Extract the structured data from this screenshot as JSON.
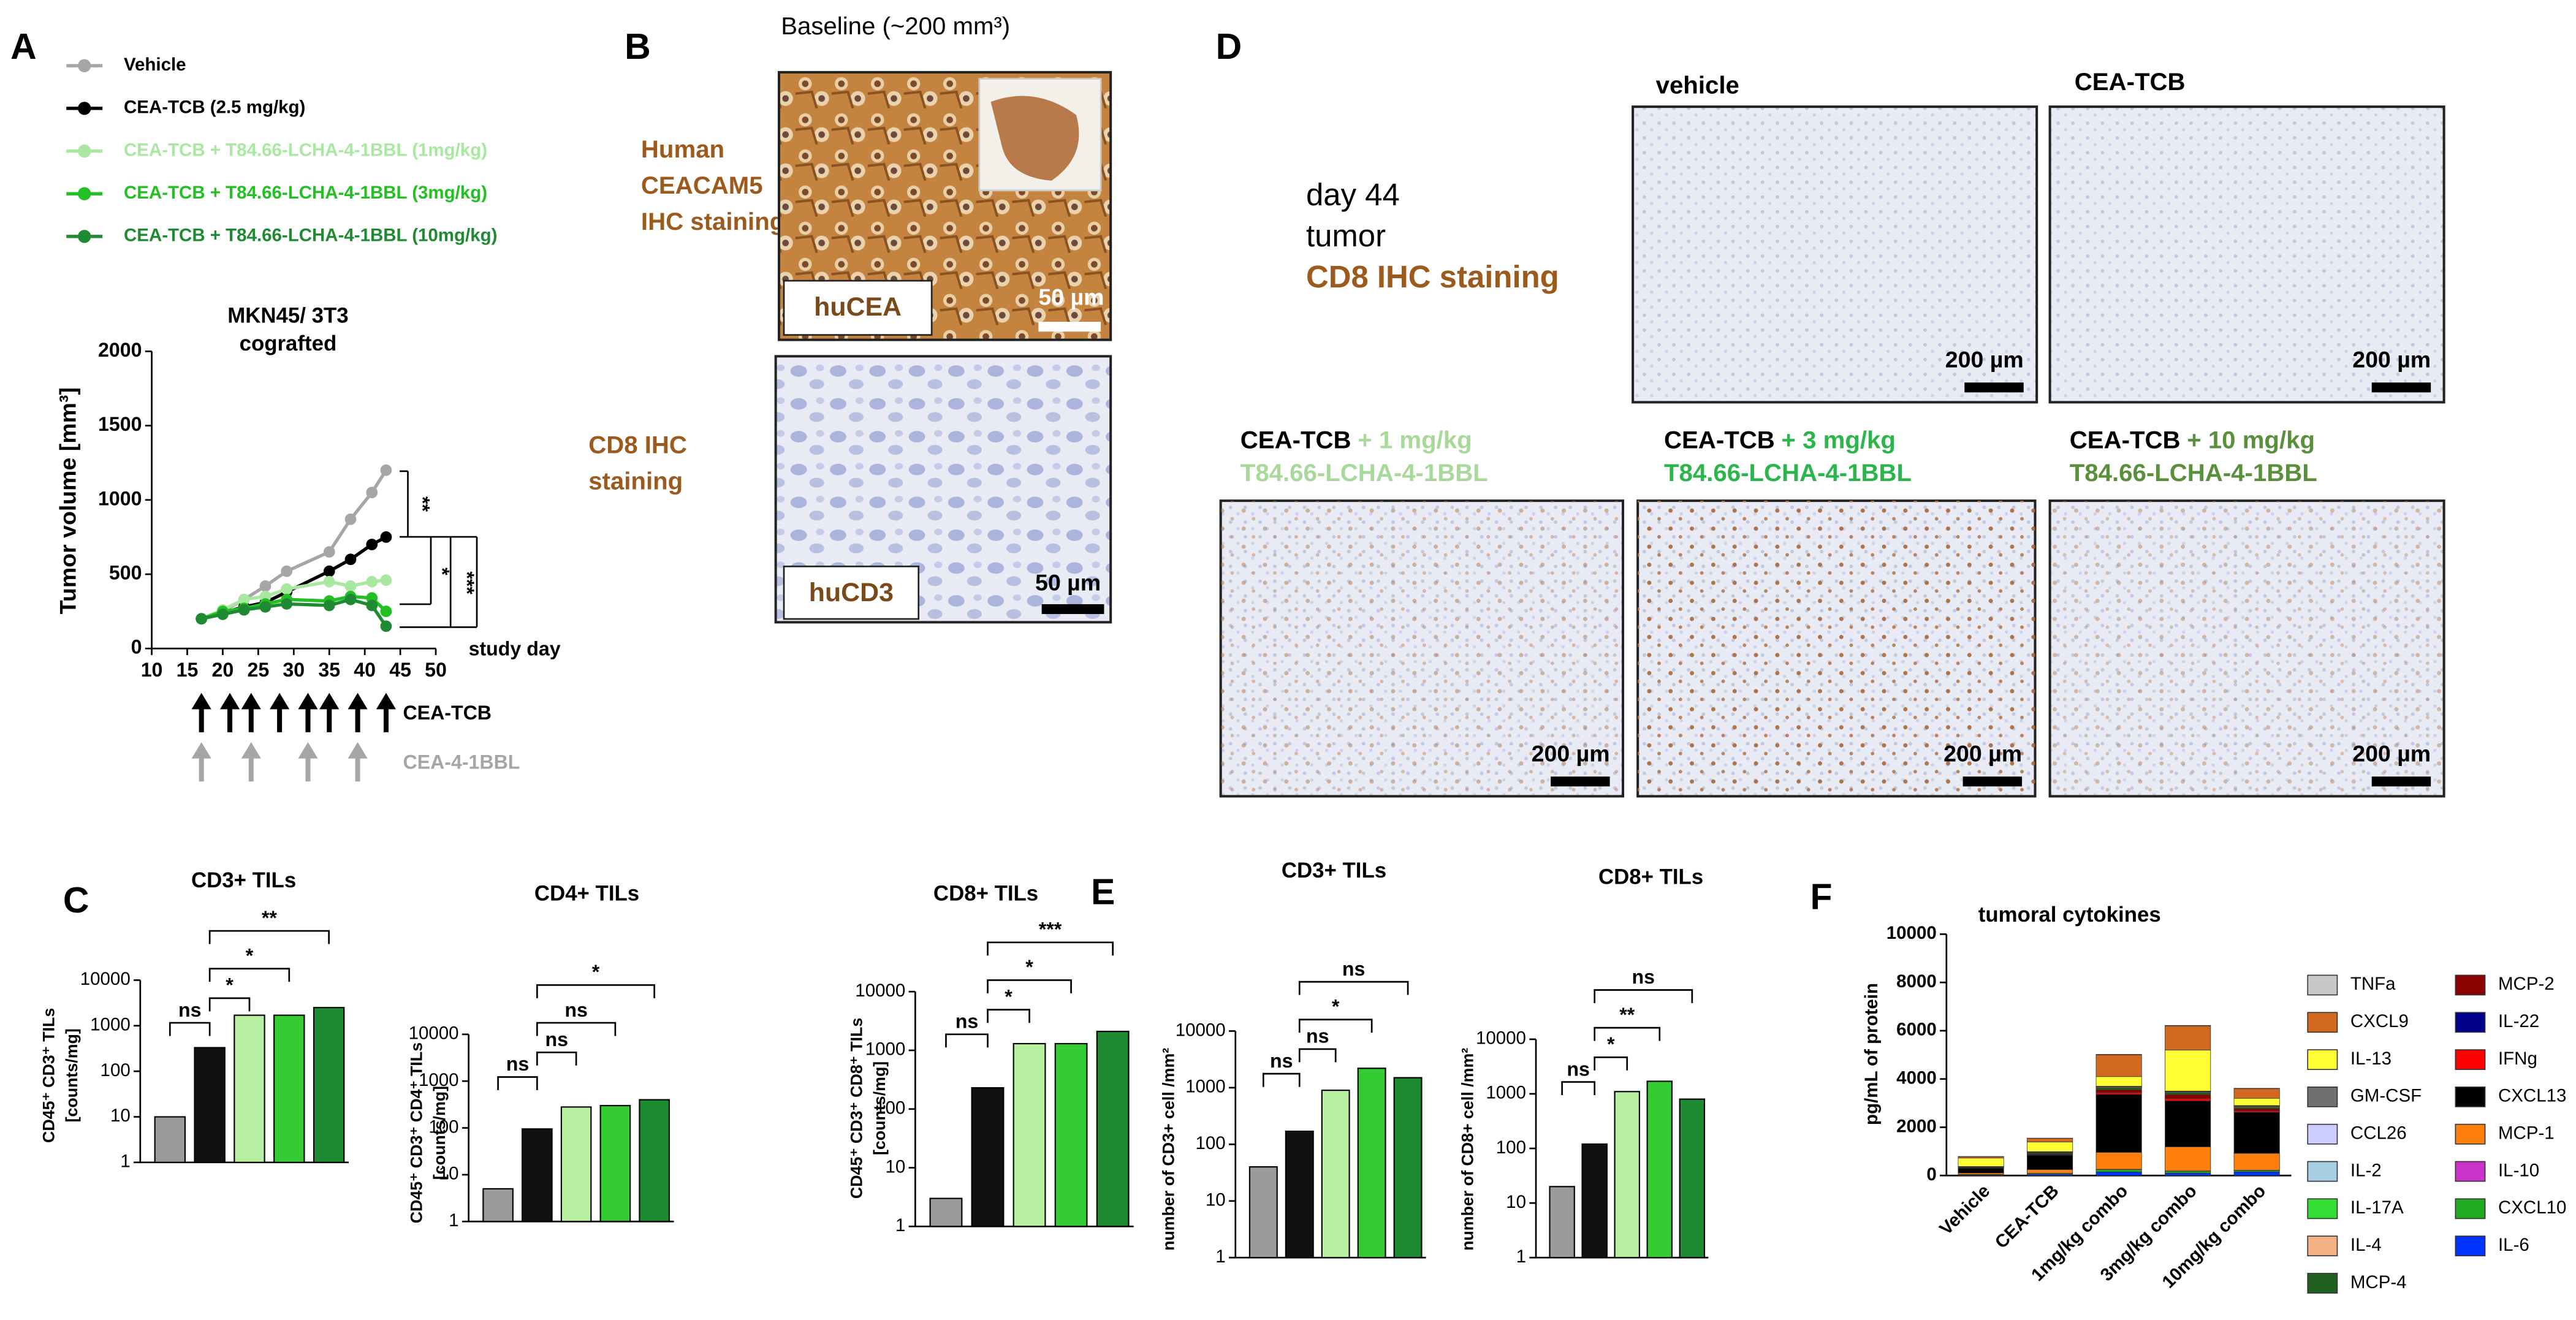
{
  "panel_labels": [
    "A",
    "B",
    "C",
    "D",
    "E",
    "F"
  ],
  "panel_b": {
    "title": "Baseline (~200 mm³)",
    "stain1_lines": [
      "Human",
      "CEACAM5",
      "IHC staining"
    ],
    "stain2_lines": [
      "CD8 IHC",
      "staining"
    ],
    "image1_label": "huCEA",
    "image1_scale": "50 µm",
    "image2_label": "huCD3",
    "image2_scale": "50 µm"
  },
  "panel_d": {
    "info_lines": [
      "day 44",
      "tumor"
    ],
    "info_stain": "CD8 IHC staining",
    "top_captions": [
      "vehicle",
      "CEA-TCB"
    ],
    "bottom_captions": [
      {
        "treatment": "CEA-TCB",
        "dose": "+ 1 mg/kg",
        "compound": "T84.66-LCHA-4-1BBL",
        "color": "#a8d89a"
      },
      {
        "treatment": "CEA-TCB",
        "dose": "+ 3 mg/kg",
        "compound": "T84.66-LCHA-4-1BBL",
        "color": "#2cb54a"
      },
      {
        "treatment": "CEA-TCB",
        "dose": "+ 10 mg/kg",
        "compound": "T84.66-LCHA-4-1BBL",
        "color": "#5a8f3c"
      }
    ],
    "scale_bars": [
      "200 µm",
      "200 µm",
      "200 µm",
      "200 µm",
      "200 µm"
    ]
  },
  "chart_data": [
    {
      "type": "line",
      "title_lines": [
        "MKN45/ 3T3",
        "cografted"
      ],
      "ylabel": "Tumor volume [mm³]",
      "xlabel": "study day",
      "xlim": [
        10,
        50
      ],
      "xticks": [
        10,
        15,
        20,
        25,
        30,
        35,
        40,
        45,
        50
      ],
      "ylim": [
        0,
        2000
      ],
      "yticks": [
        0,
        500,
        1000,
        1500,
        2000
      ],
      "x": [
        17,
        20,
        23,
        26,
        29,
        35,
        38,
        41,
        43
      ],
      "series": [
        {
          "name": "Vehicle",
          "color": "#a6a6a6",
          "values": [
            200,
            250,
            330,
            420,
            520,
            650,
            870,
            1050,
            1200
          ]
        },
        {
          "name": "CEA-TCB (2.5 mg/kg)",
          "color": "#000000",
          "values": [
            200,
            240,
            280,
            310,
            380,
            520,
            600,
            700,
            750
          ]
        },
        {
          "name": "CEA-TCB + T84.66-LCHA-4-1BBL (1mg/kg)",
          "color": "#a8e8a0",
          "values": [
            200,
            260,
            330,
            350,
            400,
            450,
            420,
            450,
            460
          ]
        },
        {
          "name": "CEA-TCB + T84.66-LCHA-4-1BBL (3mg/kg)",
          "color": "#22c022",
          "values": [
            200,
            250,
            270,
            300,
            330,
            320,
            350,
            340,
            250
          ]
        },
        {
          "name": "CEA-TCB + T84.66-LCHA-4-1BBL (10mg/kg)",
          "color": "#1e8a32",
          "values": [
            200,
            230,
            260,
            280,
            300,
            290,
            330,
            290,
            150
          ]
        }
      ],
      "annotations": [
        "**",
        "*",
        "***"
      ],
      "dosing": [
        {
          "label": "CEA-TCB",
          "color": "#000000",
          "days": [
            17,
            21,
            24,
            28,
            32,
            35,
            39,
            43
          ]
        },
        {
          "label": "CEA-4-1BBL",
          "color": "#a6a6a6",
          "days": [
            17,
            24,
            32,
            39
          ]
        }
      ]
    },
    {
      "type": "bar",
      "title": "CD3+ TILs",
      "ylabel_lines": [
        "CD45⁺ CD3⁺ TILs",
        "[counts/mg]"
      ],
      "log": true,
      "ylim": [
        1,
        10000
      ],
      "yticks": [
        1,
        10,
        100,
        1000,
        10000
      ],
      "categories": [
        null,
        null,
        null,
        null,
        null
      ],
      "values": [
        10,
        330,
        1700,
        1700,
        2500
      ],
      "colors": [
        "#9b9b9b",
        "#111111",
        "#b6f0a0",
        "#33cc33",
        "#1e8a32"
      ],
      "significance": [
        "ns",
        "*",
        "*",
        "**"
      ]
    },
    {
      "type": "bar",
      "title": "CD4+ TILs",
      "ylabel_lines": [
        "CD45⁺ CD3⁺ CD4⁺ TILs",
        "[counts/mg]"
      ],
      "log": true,
      "ylim": [
        1,
        10000
      ],
      "yticks": [
        1,
        10,
        100,
        1000,
        10000
      ],
      "categories": [
        null,
        null,
        null,
        null,
        null
      ],
      "values": [
        5,
        95,
        280,
        300,
        400
      ],
      "colors": [
        "#9b9b9b",
        "#111111",
        "#b6f0a0",
        "#33cc33",
        "#1e8a32"
      ],
      "significance": [
        "ns",
        "ns",
        "ns",
        "*"
      ]
    },
    {
      "type": "bar",
      "title": "CD8+ TILs",
      "ylabel_lines": [
        "CD45⁺ CD3⁺ CD8⁺ TILs",
        "[counts/mg]"
      ],
      "log": true,
      "ylim": [
        1,
        10000
      ],
      "yticks": [
        1,
        10,
        100,
        1000,
        10000
      ],
      "categories": [
        null,
        null,
        null,
        null,
        null
      ],
      "values": [
        3,
        230,
        1300,
        1300,
        2100
      ],
      "colors": [
        "#9b9b9b",
        "#111111",
        "#b6f0a0",
        "#33cc33",
        "#1e8a32"
      ],
      "significance": [
        "ns",
        "*",
        "*",
        "***"
      ]
    },
    {
      "type": "bar",
      "title": "CD3+ TILs",
      "ylabel_lines": [
        "number of CD3+ cell /mm²"
      ],
      "log": true,
      "ylim": [
        1,
        10000
      ],
      "yticks": [
        1,
        10,
        100,
        1000,
        10000
      ],
      "categories": [
        null,
        null,
        null,
        null,
        null
      ],
      "values": [
        40,
        170,
        900,
        2200,
        1500
      ],
      "colors": [
        "#9b9b9b",
        "#111111",
        "#b6f0a0",
        "#33cc33",
        "#1e8a32"
      ],
      "significance": [
        "ns",
        "ns",
        "*",
        "ns"
      ]
    },
    {
      "type": "bar",
      "title": "CD8+ TILs",
      "ylabel_lines": [
        "number of CD8+ cell /mm²"
      ],
      "log": true,
      "ylim": [
        1,
        10000
      ],
      "yticks": [
        1,
        10,
        100,
        1000,
        10000
      ],
      "categories": [
        null,
        null,
        null,
        null,
        null
      ],
      "values": [
        20,
        120,
        1100,
        1700,
        800
      ],
      "colors": [
        "#9b9b9b",
        "#111111",
        "#b6f0a0",
        "#33cc33",
        "#1e8a32"
      ],
      "significance": [
        "ns",
        "*",
        "**",
        "ns"
      ]
    },
    {
      "type": "stacked_bar",
      "title": "tumoral cytokines",
      "ylabel": "pg/mL of protein",
      "ylim": [
        0,
        10000
      ],
      "yticks": [
        0,
        2000,
        4000,
        6000,
        8000,
        10000
      ],
      "categories": [
        "Vehicle",
        "CEA-TCB",
        "1mg/kg combo",
        "3mg/kg combo",
        "10mg/kg combo"
      ],
      "series": [
        {
          "name": "TNFa",
          "color": "#c8c8c8",
          "values": [
            5,
            10,
            20,
            20,
            15
          ]
        },
        {
          "name": "CXCL9",
          "color": "#d2691e",
          "values": [
            60,
            150,
            900,
            1000,
            400
          ]
        },
        {
          "name": "IL-13",
          "color": "#ffff33",
          "values": [
            350,
            400,
            400,
            1700,
            300
          ]
        },
        {
          "name": "GM-CSF",
          "color": "#707070",
          "values": [
            5,
            5,
            10,
            10,
            10
          ]
        },
        {
          "name": "CCL26",
          "color": "#ccccff",
          "values": [
            5,
            5,
            10,
            10,
            10
          ]
        },
        {
          "name": "IL-2",
          "color": "#a6cee3",
          "values": [
            5,
            5,
            10,
            10,
            10
          ]
        },
        {
          "name": "IL-17A",
          "color": "#33dd33",
          "values": [
            5,
            5,
            10,
            10,
            10
          ]
        },
        {
          "name": "IL-4",
          "color": "#f4b183",
          "values": [
            10,
            20,
            30,
            30,
            30
          ]
        },
        {
          "name": "MCP-4",
          "color": "#1f5f1f",
          "values": [
            20,
            50,
            80,
            80,
            60
          ]
        },
        {
          "name": "MCP-2",
          "color": "#8b0000",
          "values": [
            10,
            30,
            100,
            150,
            80
          ]
        },
        {
          "name": "IL-22",
          "color": "#00008b",
          "values": [
            5,
            5,
            10,
            10,
            10
          ]
        },
        {
          "name": "IFNg",
          "color": "#ff0000",
          "values": [
            5,
            20,
            80,
            100,
            60
          ]
        },
        {
          "name": "CXCL13",
          "color": "#000000",
          "values": [
            200,
            600,
            2400,
            1900,
            1700
          ]
        },
        {
          "name": "MCP-1",
          "color": "#ff7f0e",
          "values": [
            60,
            150,
            700,
            1000,
            700
          ]
        },
        {
          "name": "IL-10",
          "color": "#cc33cc",
          "values": [
            5,
            5,
            10,
            10,
            10
          ]
        },
        {
          "name": "CXCL10",
          "color": "#22aa22",
          "values": [
            20,
            40,
            100,
            80,
            60
          ]
        },
        {
          "name": "IL-6",
          "color": "#0033ff",
          "values": [
            20,
            50,
            150,
            100,
            150
          ]
        }
      ]
    }
  ]
}
